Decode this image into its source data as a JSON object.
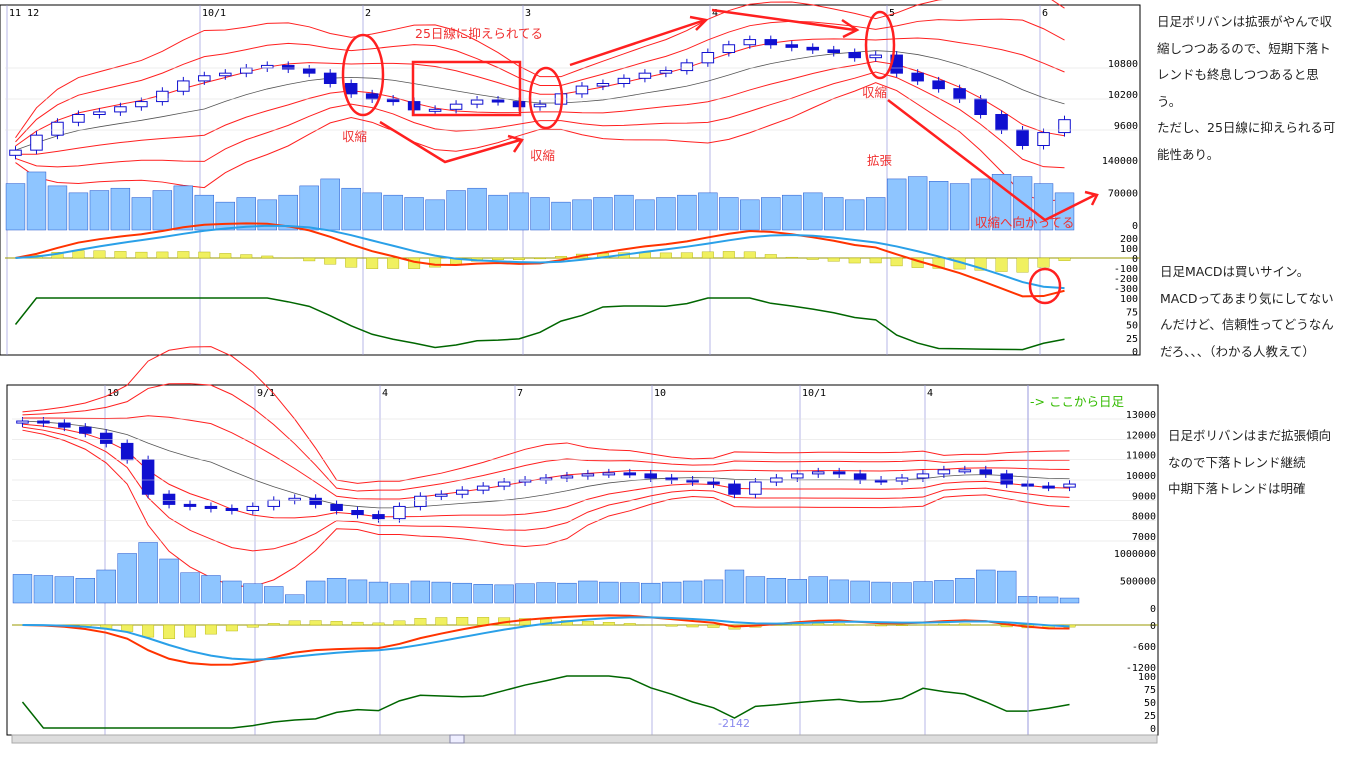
{
  "colors": {
    "candle_up": "#1010d0",
    "candle_down": "#1010d0",
    "band": "#ff2020",
    "ma": "#555555",
    "volume": "#8ec5ff",
    "macd": "#ff3300",
    "signal": "#2aa0e8",
    "hist": "#f0f060",
    "rsi": "#006600",
    "annot": "#ff2020",
    "grid": "#9999dd"
  },
  "notes_top": [
    "日足ボリバンは拡張がやんで収",
    "縮しつつあるので、短期下落ト",
    "レンドも終息しつつあると思",
    "う。",
    "ただし、25日線に抑えられる可",
    "能性あり。"
  ],
  "notes_macd": [
    "日足MACDは買いサイン。",
    "MACDってあまり気にしてない",
    "んだけど、信頼性ってどうなん",
    "だろ、、、（わかる人教えて）"
  ],
  "notes_bottom": [
    "日足ボリバンはまだ拡張傾向",
    "なので下落トレンド継続",
    "中期下落トレンドは明確"
  ],
  "annotations": {
    "resist": "25日線に抑えられてる",
    "shrink1": "収縮",
    "shrink2": "収縮",
    "shrink3": "収縮",
    "expand": "拡張",
    "toward": "収縮へ向かってる",
    "daily_from": "-> ここから日足",
    "cursor_value": "-2142"
  },
  "chart_data": [
    {
      "type": "candlestick",
      "xticks": [
        "11 12",
        "10/1",
        "2",
        "3",
        "4",
        "5",
        "6"
      ],
      "price_ticks": [
        "10800",
        "10200",
        "9600"
      ],
      "volume_ticks": [
        "140000",
        "70000",
        "0"
      ],
      "macd_ticks": [
        "200",
        "100",
        "0",
        "-100",
        "-200",
        "-300"
      ],
      "rsi_ticks": [
        "100",
        "75",
        "50",
        "25",
        "0"
      ],
      "close": [
        9210,
        9500,
        9750,
        9900,
        9950,
        10050,
        10150,
        10350,
        10550,
        10650,
        10700,
        10800,
        10850,
        10780,
        10700,
        10500,
        10300,
        10200,
        10150,
        9990,
        10000,
        10100,
        10180,
        10150,
        10050,
        10100,
        10300,
        10450,
        10500,
        10600,
        10700,
        10750,
        10900,
        11100,
        11250,
        11350,
        11250,
        11200,
        11150,
        11100,
        11000,
        11050,
        10700,
        10550,
        10400,
        10200,
        9900,
        9600,
        9300,
        9550,
        9800
      ],
      "volume": [
        100000,
        125000,
        95000,
        80000,
        85000,
        90000,
        70000,
        85000,
        95000,
        75000,
        60000,
        70000,
        65000,
        75000,
        95000,
        110000,
        90000,
        80000,
        75000,
        70000,
        65000,
        85000,
        90000,
        75000,
        80000,
        70000,
        60000,
        65000,
        70000,
        75000,
        65000,
        70000,
        75000,
        80000,
        70000,
        65000,
        70000,
        75000,
        80000,
        70000,
        65000,
        70000,
        110000,
        115000,
        105000,
        100000,
        110000,
        120000,
        115000,
        100000,
        80000
      ]
    },
    {
      "type": "candlestick",
      "xticks": [
        "10",
        "9/1",
        "4",
        "7",
        "10",
        "10/1",
        "4"
      ],
      "price_ticks": [
        "13000",
        "12000",
        "11000",
        "10000",
        "9000",
        "8000",
        "7000"
      ],
      "volume_ticks": [
        "1000000",
        "500000",
        "0"
      ],
      "macd_ticks": [
        "0",
        "-600",
        "-1200"
      ],
      "rsi_ticks": [
        "100",
        "75",
        "50",
        "25",
        "0"
      ],
      "close": [
        12900,
        12800,
        12600,
        12300,
        11800,
        11000,
        9300,
        8800,
        8700,
        8600,
        8500,
        8700,
        9000,
        9100,
        8800,
        8500,
        8300,
        8100,
        8700,
        9200,
        9300,
        9500,
        9700,
        9900,
        10000,
        10100,
        10200,
        10300,
        10350,
        10300,
        10100,
        10000,
        9900,
        9800,
        9300,
        9900,
        10100,
        10300,
        10400,
        10300,
        10000,
        9950,
        10100,
        10300,
        10500,
        10500,
        10300,
        9800,
        9700,
        9650,
        9800
      ],
      "volume": [
        520000,
        500000,
        480000,
        450000,
        600000,
        900000,
        1100000,
        800000,
        550000,
        500000,
        400000,
        350000,
        300000,
        150000,
        400000,
        450000,
        420000,
        380000,
        350000,
        400000,
        380000,
        360000,
        340000,
        330000,
        350000,
        370000,
        360000,
        400000,
        380000,
        370000,
        360000,
        380000,
        400000,
        420000,
        600000,
        480000,
        450000,
        430000,
        480000,
        420000,
        400000,
        380000,
        370000,
        390000,
        410000,
        450000,
        600000,
        580000,
        120000,
        110000,
        90000
      ]
    }
  ]
}
